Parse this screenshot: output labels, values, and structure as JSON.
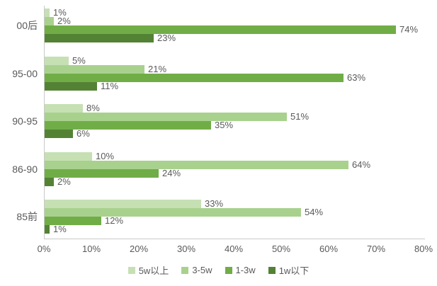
{
  "style": {
    "text_color": "#595959",
    "axis_color": "#c9c9c9",
    "background": "#ffffff"
  },
  "chart_data": {
    "type": "bar",
    "orientation": "horizontal",
    "title": "",
    "xlabel": "",
    "ylabel": "",
    "categories": [
      "00后",
      "95-00",
      "90-95",
      "86-90",
      "85前"
    ],
    "series": [
      {
        "name": "5w以上",
        "color": "#c6e0b4",
        "values": [
          1,
          5,
          8,
          10,
          33
        ]
      },
      {
        "name": "3-5w",
        "color": "#a9d18e",
        "values": [
          2,
          21,
          51,
          64,
          54
        ]
      },
      {
        "name": "1-3w",
        "color": "#70ad47",
        "values": [
          74,
          63,
          35,
          24,
          12
        ]
      },
      {
        "name": "1w以下",
        "color": "#548235",
        "values": [
          23,
          11,
          6,
          2,
          1
        ]
      }
    ],
    "data_labels": [
      [
        "1%",
        "5%",
        "8%",
        "10%",
        "33%"
      ],
      [
        "2%",
        "21%",
        "51%",
        "64%",
        "54%"
      ],
      [
        "74%",
        "63%",
        "35%",
        "24%",
        "12%"
      ],
      [
        "23%",
        "11%",
        "6%",
        "2%",
        "1%"
      ]
    ],
    "xlim": [
      0,
      80
    ],
    "x_tick_step": 10,
    "x_tick_labels": [
      "0%",
      "10%",
      "20%",
      "30%",
      "40%",
      "50%",
      "60%",
      "70%",
      "80%"
    ],
    "grid": false,
    "legend_position": "bottom-center",
    "legend_labels": [
      "5w以上",
      "3-5w",
      "1-3w",
      "1w以下"
    ]
  }
}
